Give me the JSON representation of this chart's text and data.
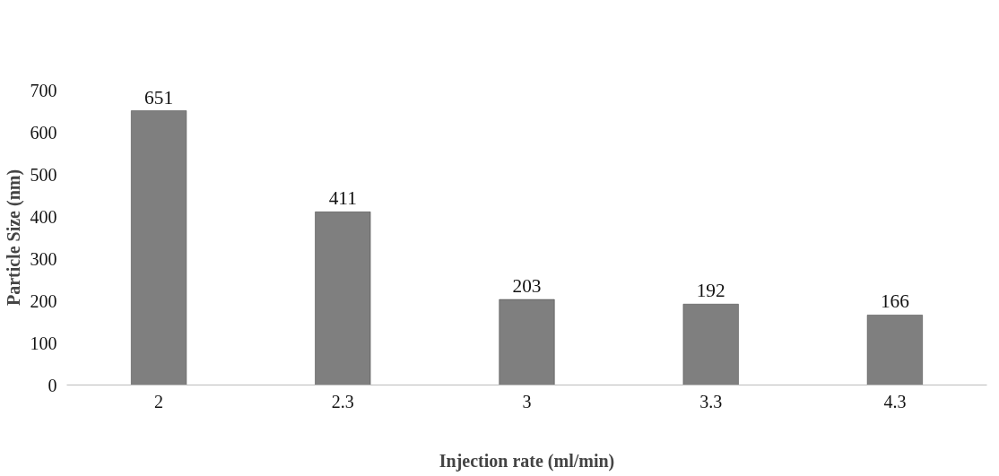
{
  "chart_data": {
    "type": "bar",
    "xlabel": "Injection rate (ml/min)",
    "ylabel": "Particle Size (nm)",
    "categories": [
      "2",
      "2.3",
      "3",
      "3.3",
      "4.3"
    ],
    "values": [
      651,
      411,
      203,
      192,
      166
    ],
    "color": "#7f7f7f",
    "ylim": [
      0,
      700
    ],
    "yticks": [
      0,
      100,
      200,
      300,
      400,
      500,
      600,
      700
    ],
    "grid": false,
    "data_labels": true
  }
}
